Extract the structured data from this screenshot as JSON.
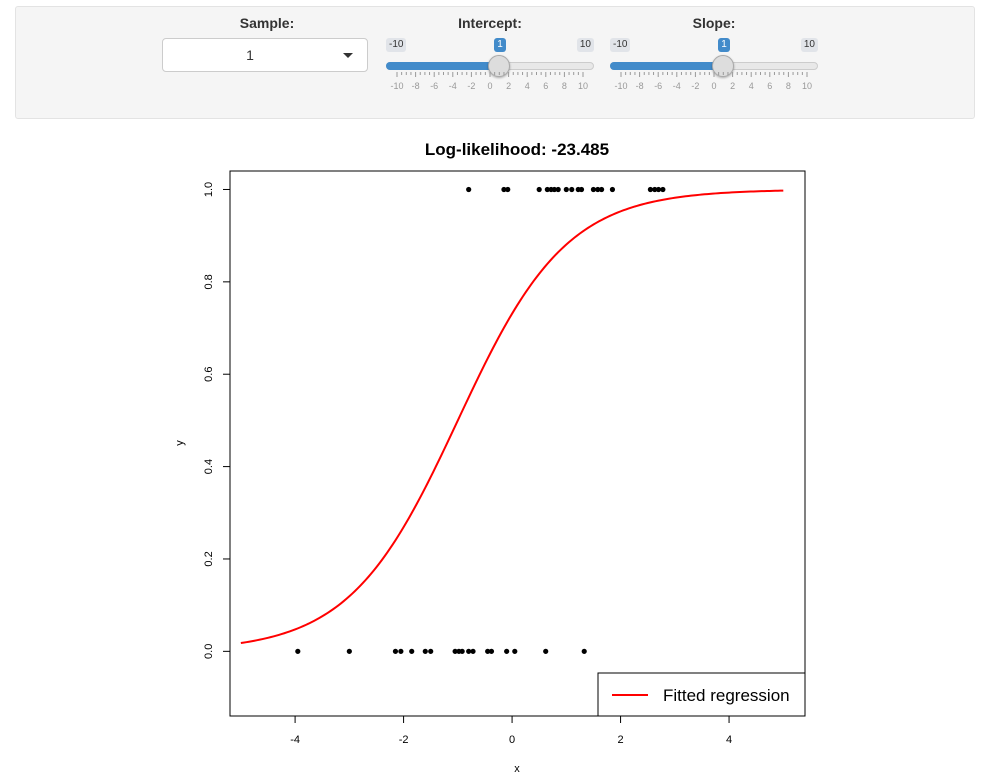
{
  "controls": {
    "sample": {
      "label": "Sample:",
      "value": "1"
    },
    "intercept": {
      "label": "Intercept:",
      "min": -10,
      "max": 10,
      "value": 1,
      "min_label": "-10",
      "max_label": "10",
      "value_label": "1",
      "tick_labels": [
        "-10",
        "-8",
        "-6",
        "-4",
        "-2",
        "0",
        "2",
        "4",
        "6",
        "8",
        "10"
      ]
    },
    "slope": {
      "label": "Slope:",
      "min": -10,
      "max": 10,
      "value": 1,
      "min_label": "-10",
      "max_label": "10",
      "value_label": "1",
      "tick_labels": [
        "-10",
        "-8",
        "-6",
        "-4",
        "-2",
        "0",
        "2",
        "4",
        "6",
        "8",
        "10"
      ]
    }
  },
  "colors": {
    "accent": "#428bca",
    "curve": "#ff0000",
    "points": "#000000"
  },
  "chart_data": {
    "type": "scatter",
    "title": "Log-likelihood: -23.485",
    "xlabel": "x",
    "ylabel": "y",
    "xlim": [
      -5.2,
      5.4
    ],
    "ylim": [
      -0.14,
      1.04
    ],
    "x_ticks": [
      -4,
      -2,
      0,
      2,
      4
    ],
    "x_tick_labels": [
      "-4",
      "-2",
      "0",
      "2",
      "4"
    ],
    "y_ticks": [
      0.0,
      0.2,
      0.4,
      0.6,
      0.8,
      1.0
    ],
    "y_tick_labels": [
      "0.0",
      "0.2",
      "0.4",
      "0.6",
      "0.8",
      "1.0"
    ],
    "legend": {
      "position": "bottom-right",
      "entries": [
        "Fitted regression"
      ]
    },
    "series": [
      {
        "type": "points",
        "x": [
          -3.95,
          -3.0,
          -2.15,
          -2.05,
          -1.85,
          -1.6,
          -1.5,
          -1.05,
          -0.98,
          -0.92,
          -0.8,
          -0.72,
          -0.45,
          -0.38,
          -0.1,
          0.05,
          0.62,
          1.33,
          -0.8,
          -0.15,
          -0.08,
          0.5,
          0.65,
          0.72,
          0.78,
          0.85,
          1.0,
          1.1,
          1.22,
          1.28,
          1.5,
          1.58,
          1.65,
          1.85,
          2.55,
          2.63,
          2.7,
          2.78
        ],
        "y": [
          0,
          0,
          0,
          0,
          0,
          0,
          0,
          0,
          0,
          0,
          0,
          0,
          0,
          0,
          0,
          0,
          0,
          0,
          1,
          1,
          1,
          1,
          1,
          1,
          1,
          1,
          1,
          1,
          1,
          1,
          1,
          1,
          1,
          1,
          1,
          1,
          1,
          1
        ]
      },
      {
        "name": "Fitted regression",
        "type": "line",
        "intercept": 1,
        "slope": 1,
        "x_from": -5,
        "x_to": 5,
        "function": "logistic"
      }
    ]
  }
}
